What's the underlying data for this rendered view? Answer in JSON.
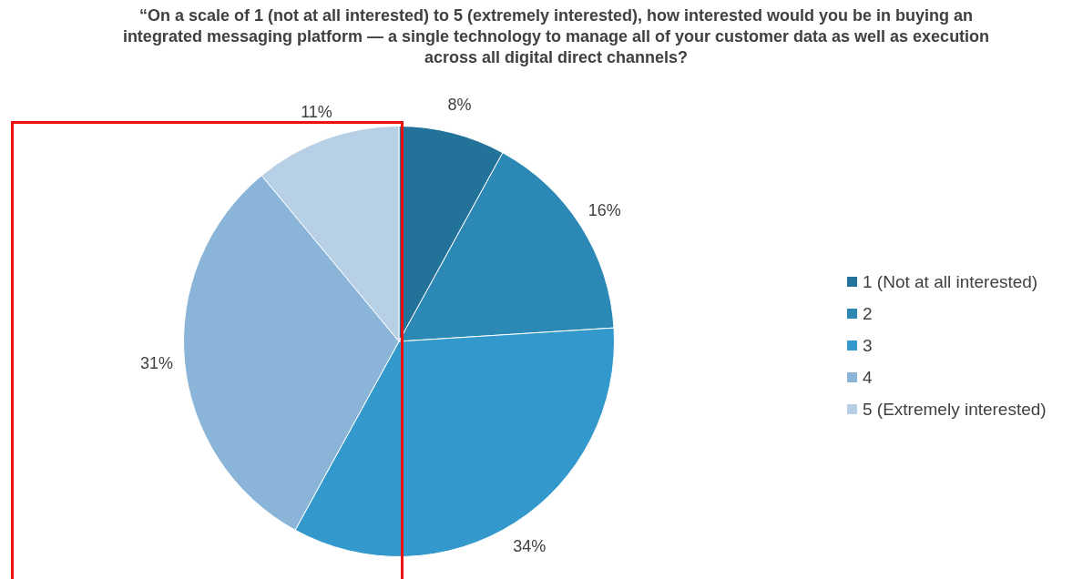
{
  "chart_data": {
    "type": "pie",
    "title": "“On a scale of 1 (not at all interested) to 5 (extremely interested), how interested would you be in buying an integrated messaging platform — a single technology to manage all of your customer data as well as execution across all digital direct channels?",
    "categories": [
      "1 (Not at all interested)",
      "2",
      "3",
      "4",
      "5 (Extremely interested)"
    ],
    "values": [
      8,
      16,
      34,
      31,
      11
    ],
    "colors": [
      "#23729a",
      "#2c88b5",
      "#3399cc",
      "#8ab5d8",
      "#b8d0e5"
    ],
    "value_labels": [
      "8%",
      "16%",
      "34%",
      "31%",
      "11%"
    ],
    "legend": "right"
  }
}
